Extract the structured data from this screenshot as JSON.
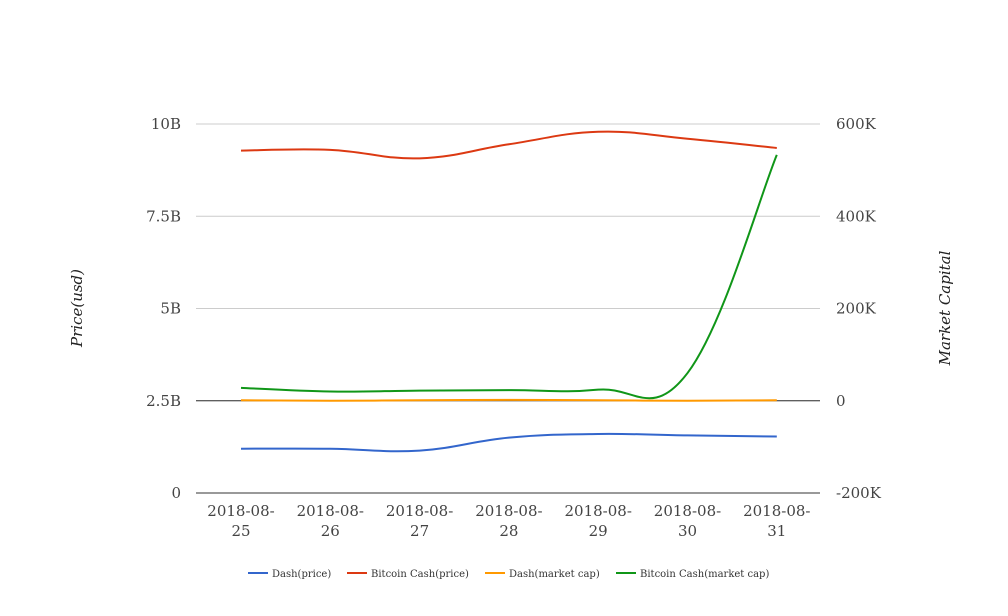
{
  "chart_data": {
    "type": "line",
    "title": "",
    "x": [
      "2018-08-25",
      "2018-08-26",
      "2018-08-27",
      "2018-08-28",
      "2018-08-29",
      "2018-08-30",
      "2018-08-31"
    ],
    "x_tick_labels": [
      [
        "2018-08-",
        "25"
      ],
      [
        "2018-08-",
        "26"
      ],
      [
        "2018-08-",
        "27"
      ],
      [
        "2018-08-",
        "28"
      ],
      [
        "2018-08-",
        "29"
      ],
      [
        "2018-08-",
        "30"
      ],
      [
        "2018-08-",
        "31"
      ]
    ],
    "y_left": {
      "label": "Price(usd)",
      "range": [
        0,
        10000000000
      ],
      "ticks": [
        0,
        2500000000,
        5000000000,
        7500000000,
        10000000000
      ],
      "tick_labels": [
        "0",
        "2.5B",
        "5B",
        "7.5B",
        "10B"
      ]
    },
    "y_right": {
      "label": "Market Capital",
      "range": [
        -200000,
        600000
      ],
      "ticks": [
        -200000,
        0,
        200000,
        400000,
        600000
      ],
      "tick_labels": [
        "-200K",
        "0",
        "200K",
        "400K",
        "600K"
      ]
    },
    "grid": true,
    "legend_position": "bottom",
    "series": [
      {
        "name": "Dash(price)",
        "axis": "left",
        "color": "#3366cc",
        "values": [
          1200000000,
          1200000000,
          1150000000,
          1500000000,
          1600000000,
          1560000000,
          1530000000
        ]
      },
      {
        "name": "Bitcoin Cash(price)",
        "axis": "left",
        "color": "#dc3912",
        "values": [
          9280000000,
          9300000000,
          9070000000,
          9450000000,
          9790000000,
          9600000000,
          9350000000
        ]
      },
      {
        "name": "Dash(market cap)",
        "axis": "right",
        "color": "#ff9900",
        "values": [
          1000,
          0,
          1000,
          2000,
          1000,
          0,
          1000
        ]
      },
      {
        "name": "Bitcoin Cash(market cap)",
        "axis": "right",
        "color": "#109618",
        "values": [
          28000,
          20000,
          22000,
          23000,
          24000,
          60000,
          533000
        ]
      }
    ]
  }
}
